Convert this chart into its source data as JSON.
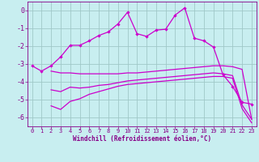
{
  "xlabel": "Windchill (Refroidissement éolien,°C)",
  "background_color": "#c8eef0",
  "grid_color": "#a0c8c8",
  "line_color": "#cc00cc",
  "xlim": [
    -0.5,
    23.5
  ],
  "ylim": [
    -6.5,
    0.5
  ],
  "yticks": [
    0,
    -1,
    -2,
    -3,
    -4,
    -5,
    -6
  ],
  "xticks": [
    0,
    1,
    2,
    3,
    4,
    5,
    6,
    7,
    8,
    9,
    10,
    11,
    12,
    13,
    14,
    15,
    16,
    17,
    18,
    19,
    20,
    21,
    22,
    23
  ],
  "line1_x": [
    0,
    1,
    2,
    3,
    4,
    5,
    6,
    7,
    8,
    9,
    10,
    11,
    12,
    13,
    14,
    15,
    16,
    17,
    18,
    19,
    20,
    21,
    22,
    23
  ],
  "line1_y": [
    -3.1,
    -3.4,
    -3.1,
    -2.6,
    -1.95,
    -1.95,
    -1.7,
    -1.4,
    -1.2,
    -0.75,
    -0.1,
    -1.3,
    -1.45,
    -1.1,
    -1.05,
    -0.25,
    0.15,
    -1.55,
    -1.7,
    -2.05,
    -3.6,
    -4.25,
    -5.15,
    -5.25
  ],
  "line2_x": [
    2,
    3,
    4,
    5,
    6,
    7,
    8,
    9,
    10,
    11,
    12,
    13,
    14,
    15,
    16,
    17,
    18,
    19,
    20,
    21,
    22,
    23
  ],
  "line2_y": [
    -3.4,
    -3.5,
    -3.5,
    -3.55,
    -3.55,
    -3.55,
    -3.55,
    -3.55,
    -3.5,
    -3.5,
    -3.45,
    -3.4,
    -3.35,
    -3.3,
    -3.25,
    -3.2,
    -3.15,
    -3.1,
    -3.1,
    -3.15,
    -3.3,
    -6.1
  ],
  "line3_x": [
    2,
    3,
    4,
    5,
    6,
    7,
    8,
    9,
    10,
    11,
    12,
    13,
    14,
    15,
    16,
    17,
    18,
    19,
    20,
    21,
    22,
    23
  ],
  "line3_y": [
    -4.45,
    -4.55,
    -4.3,
    -4.35,
    -4.3,
    -4.2,
    -4.15,
    -4.05,
    -3.95,
    -3.9,
    -3.85,
    -3.8,
    -3.75,
    -3.7,
    -3.65,
    -3.6,
    -3.55,
    -3.5,
    -3.55,
    -3.65,
    -5.3,
    -6.1
  ],
  "line4_x": [
    2,
    3,
    4,
    5,
    6,
    7,
    8,
    9,
    10,
    11,
    12,
    13,
    14,
    15,
    16,
    17,
    18,
    19,
    20,
    21,
    22,
    23
  ],
  "line4_y": [
    -5.35,
    -5.55,
    -5.1,
    -4.95,
    -4.7,
    -4.55,
    -4.4,
    -4.25,
    -4.15,
    -4.1,
    -4.05,
    -4.0,
    -3.95,
    -3.9,
    -3.85,
    -3.8,
    -3.75,
    -3.7,
    -3.7,
    -3.8,
    -5.5,
    -6.3
  ]
}
